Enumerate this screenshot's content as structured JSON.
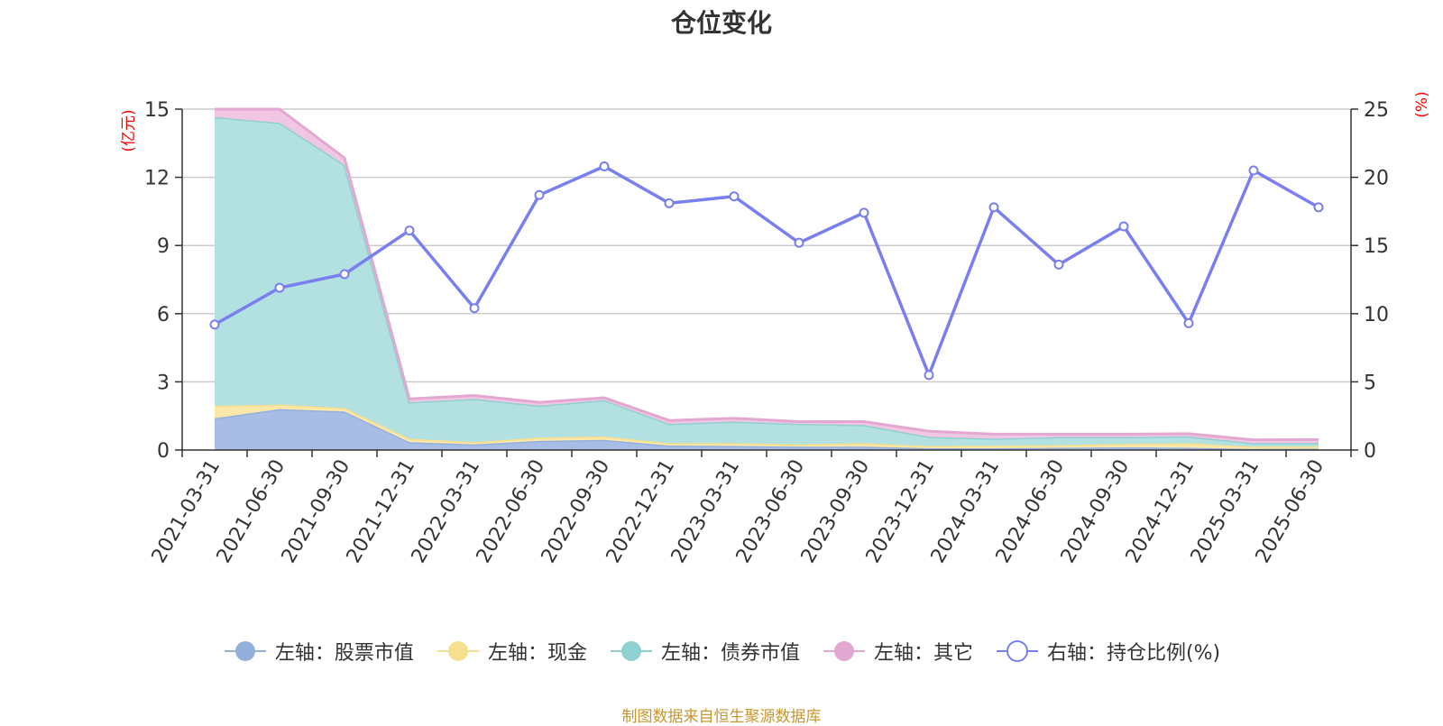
{
  "chart_data": {
    "type": "area",
    "title": "仓位变化",
    "left_axis_unit": "(亿元)",
    "right_axis_unit": "(%)",
    "left_ylim": [
      0,
      15
    ],
    "left_ticks": [
      "0",
      "3",
      "6",
      "9",
      "12",
      "15"
    ],
    "right_ylim": [
      0,
      25
    ],
    "right_ticks": [
      "0",
      "5",
      "10",
      "15",
      "20",
      "25"
    ],
    "grid": true,
    "legend_position": "bottom",
    "categories": [
      "2021-03-31",
      "2021-06-30",
      "2021-09-30",
      "2021-12-31",
      "2022-03-31",
      "2022-06-30",
      "2022-09-30",
      "2022-12-31",
      "2023-03-31",
      "2023-06-30",
      "2023-09-30",
      "2023-12-31",
      "2024-03-31",
      "2024-06-30",
      "2024-09-30",
      "2024-12-31",
      "2025-03-31",
      "2025-06-30"
    ],
    "stacked_series": [
      {
        "name": "左轴：股票市值",
        "color": "#a8bde6",
        "line_color": "#93b0dd",
        "values": [
          1.4,
          1.8,
          1.7,
          0.35,
          0.25,
          0.4,
          0.45,
          0.2,
          0.18,
          0.15,
          0.15,
          0.08,
          0.08,
          0.1,
          0.12,
          0.1,
          0.05,
          0.06
        ]
      },
      {
        "name": "左轴：现金",
        "color": "#fbe8a8",
        "line_color": "#f6df8f",
        "values": [
          0.55,
          0.2,
          0.15,
          0.15,
          0.1,
          0.15,
          0.15,
          0.1,
          0.12,
          0.1,
          0.15,
          0.1,
          0.12,
          0.12,
          0.15,
          0.2,
          0.1,
          0.1
        ]
      },
      {
        "name": "左轴：债券市值",
        "color": "#b3e0e0",
        "line_color": "#8fd1d1",
        "values": [
          12.7,
          12.4,
          10.7,
          1.6,
          1.9,
          1.4,
          1.6,
          0.85,
          0.95,
          0.9,
          0.8,
          0.4,
          0.3,
          0.35,
          0.3,
          0.3,
          0.15,
          0.15
        ]
      },
      {
        "name": "左轴：其它",
        "color": "#f0c6e2",
        "line_color": "#e3a8d2",
        "values": [
          0.35,
          0.6,
          0.3,
          0.15,
          0.15,
          0.15,
          0.1,
          0.15,
          0.15,
          0.1,
          0.15,
          0.25,
          0.2,
          0.13,
          0.13,
          0.12,
          0.15,
          0.15
        ]
      }
    ],
    "line_series": {
      "name": "右轴：持仓比例(%)",
      "color": "#7a7ff0",
      "values": [
        9.2,
        11.9,
        12.9,
        16.1,
        10.4,
        18.7,
        20.8,
        18.1,
        18.6,
        15.2,
        17.4,
        5.5,
        17.8,
        13.6,
        16.4,
        9.3,
        20.5,
        17.8
      ]
    }
  },
  "source_note": "制图数据来自恒生聚源数据库"
}
